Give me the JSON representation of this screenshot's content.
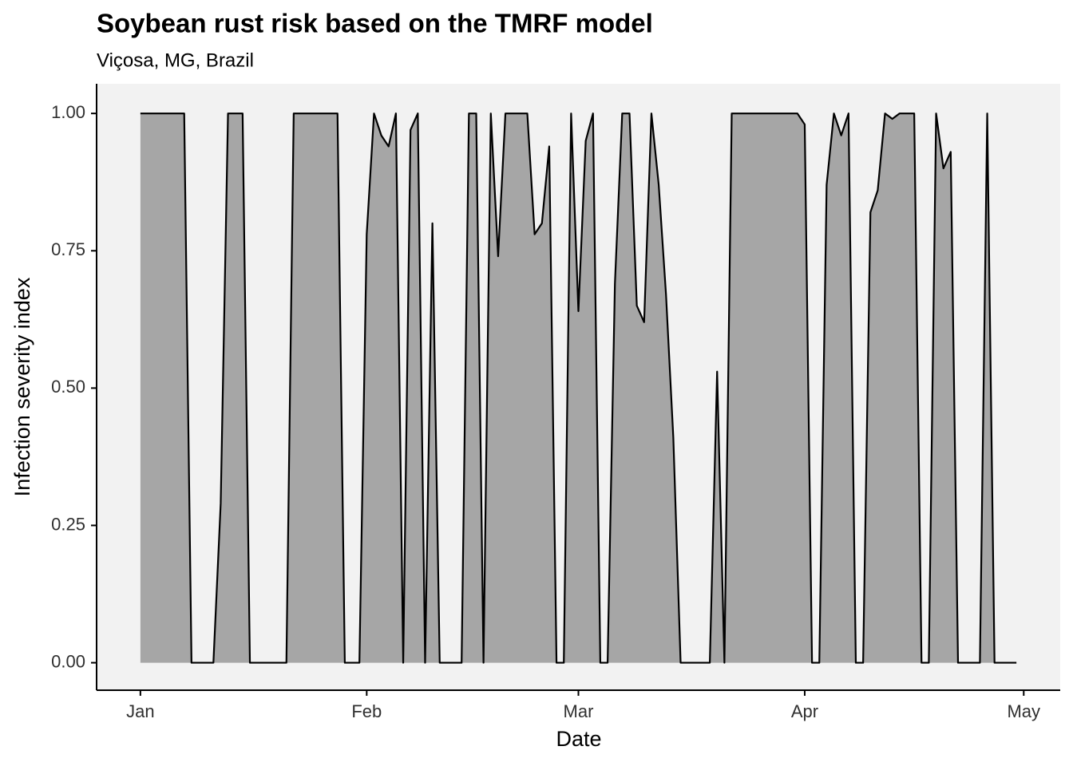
{
  "chart_data": {
    "type": "area",
    "title": "Soybean rust risk based on the TMRF model",
    "subtitle": "Viçosa, MG, Brazil",
    "x_label": "Date",
    "y_label": "Infection severity index",
    "x": [
      1,
      2,
      3,
      4,
      5,
      6,
      7,
      8,
      9,
      10,
      11,
      12,
      13,
      14,
      15,
      16,
      17,
      18,
      19,
      20,
      21,
      22,
      23,
      24,
      25,
      26,
      27,
      28,
      29,
      30,
      31,
      32,
      33,
      34,
      35,
      36,
      37,
      38,
      39,
      40,
      41,
      42,
      43,
      44,
      45,
      46,
      47,
      48,
      49,
      50,
      51,
      52,
      53,
      54,
      55,
      56,
      57,
      58,
      59,
      60,
      61,
      62,
      63,
      64,
      65,
      66,
      67,
      68,
      69,
      70,
      71,
      72,
      73,
      74,
      75,
      76,
      77,
      78,
      79,
      80,
      81,
      82,
      83,
      84,
      85,
      86,
      87,
      88,
      89,
      90,
      91,
      92,
      93,
      94,
      95,
      96,
      97,
      98,
      99,
      100,
      101,
      102,
      103,
      104,
      105,
      106,
      107,
      108,
      109,
      110,
      111,
      112,
      113,
      114,
      115,
      116,
      117,
      118,
      119,
      120,
      121
    ],
    "values": [
      1,
      1,
      1,
      1,
      1,
      1,
      1,
      0,
      0,
      0,
      0,
      0.29,
      1,
      1,
      1,
      0,
      0,
      0,
      0,
      0,
      0,
      1,
      1,
      1,
      1,
      1,
      1,
      1,
      0,
      0,
      0,
      0.78,
      1,
      0.96,
      0.94,
      1,
      0,
      0.97,
      1,
      0,
      0.8,
      0,
      0,
      0,
      0,
      1,
      1,
      0,
      1,
      0.74,
      1,
      1,
      1,
      1,
      0.78,
      0.8,
      0.94,
      0,
      0,
      1,
      0.64,
      0.95,
      1,
      0,
      0,
      0.69,
      1,
      1,
      0.65,
      0.62,
      1,
      0.87,
      0.67,
      0.41,
      0,
      0,
      0,
      0,
      0,
      0.53,
      0,
      1,
      1,
      1,
      1,
      1,
      1,
      1,
      1,
      1,
      1,
      0.98,
      0,
      0,
      0.87,
      1,
      0.96,
      1,
      0,
      0,
      0.82,
      0.86,
      1,
      0.99,
      1,
      1,
      1,
      0,
      0,
      1,
      0.9,
      0.93,
      0,
      0,
      0,
      0,
      1,
      0,
      0,
      0,
      0
    ],
    "fill": "#a6a6a6",
    "color": "#000000",
    "panel_background": "#f2f2f2",
    "xlim": [
      -5,
      127
    ],
    "xticks": [
      {
        "value": 1,
        "label": "Jan"
      },
      {
        "value": 32,
        "label": "Feb"
      },
      {
        "value": 61,
        "label": "Mar"
      },
      {
        "value": 92,
        "label": "Apr"
      },
      {
        "value": 122,
        "label": "May"
      }
    ],
    "ylim": [
      -0.05,
      1.054
    ],
    "yticks": [
      {
        "value": 0,
        "label": "0.00"
      },
      {
        "value": 0.25,
        "label": "0.25"
      },
      {
        "value": 0.5,
        "label": "0.50"
      },
      {
        "value": 0.75,
        "label": "0.75"
      },
      {
        "value": 1,
        "label": "1.00"
      }
    ],
    "grid": false
  }
}
